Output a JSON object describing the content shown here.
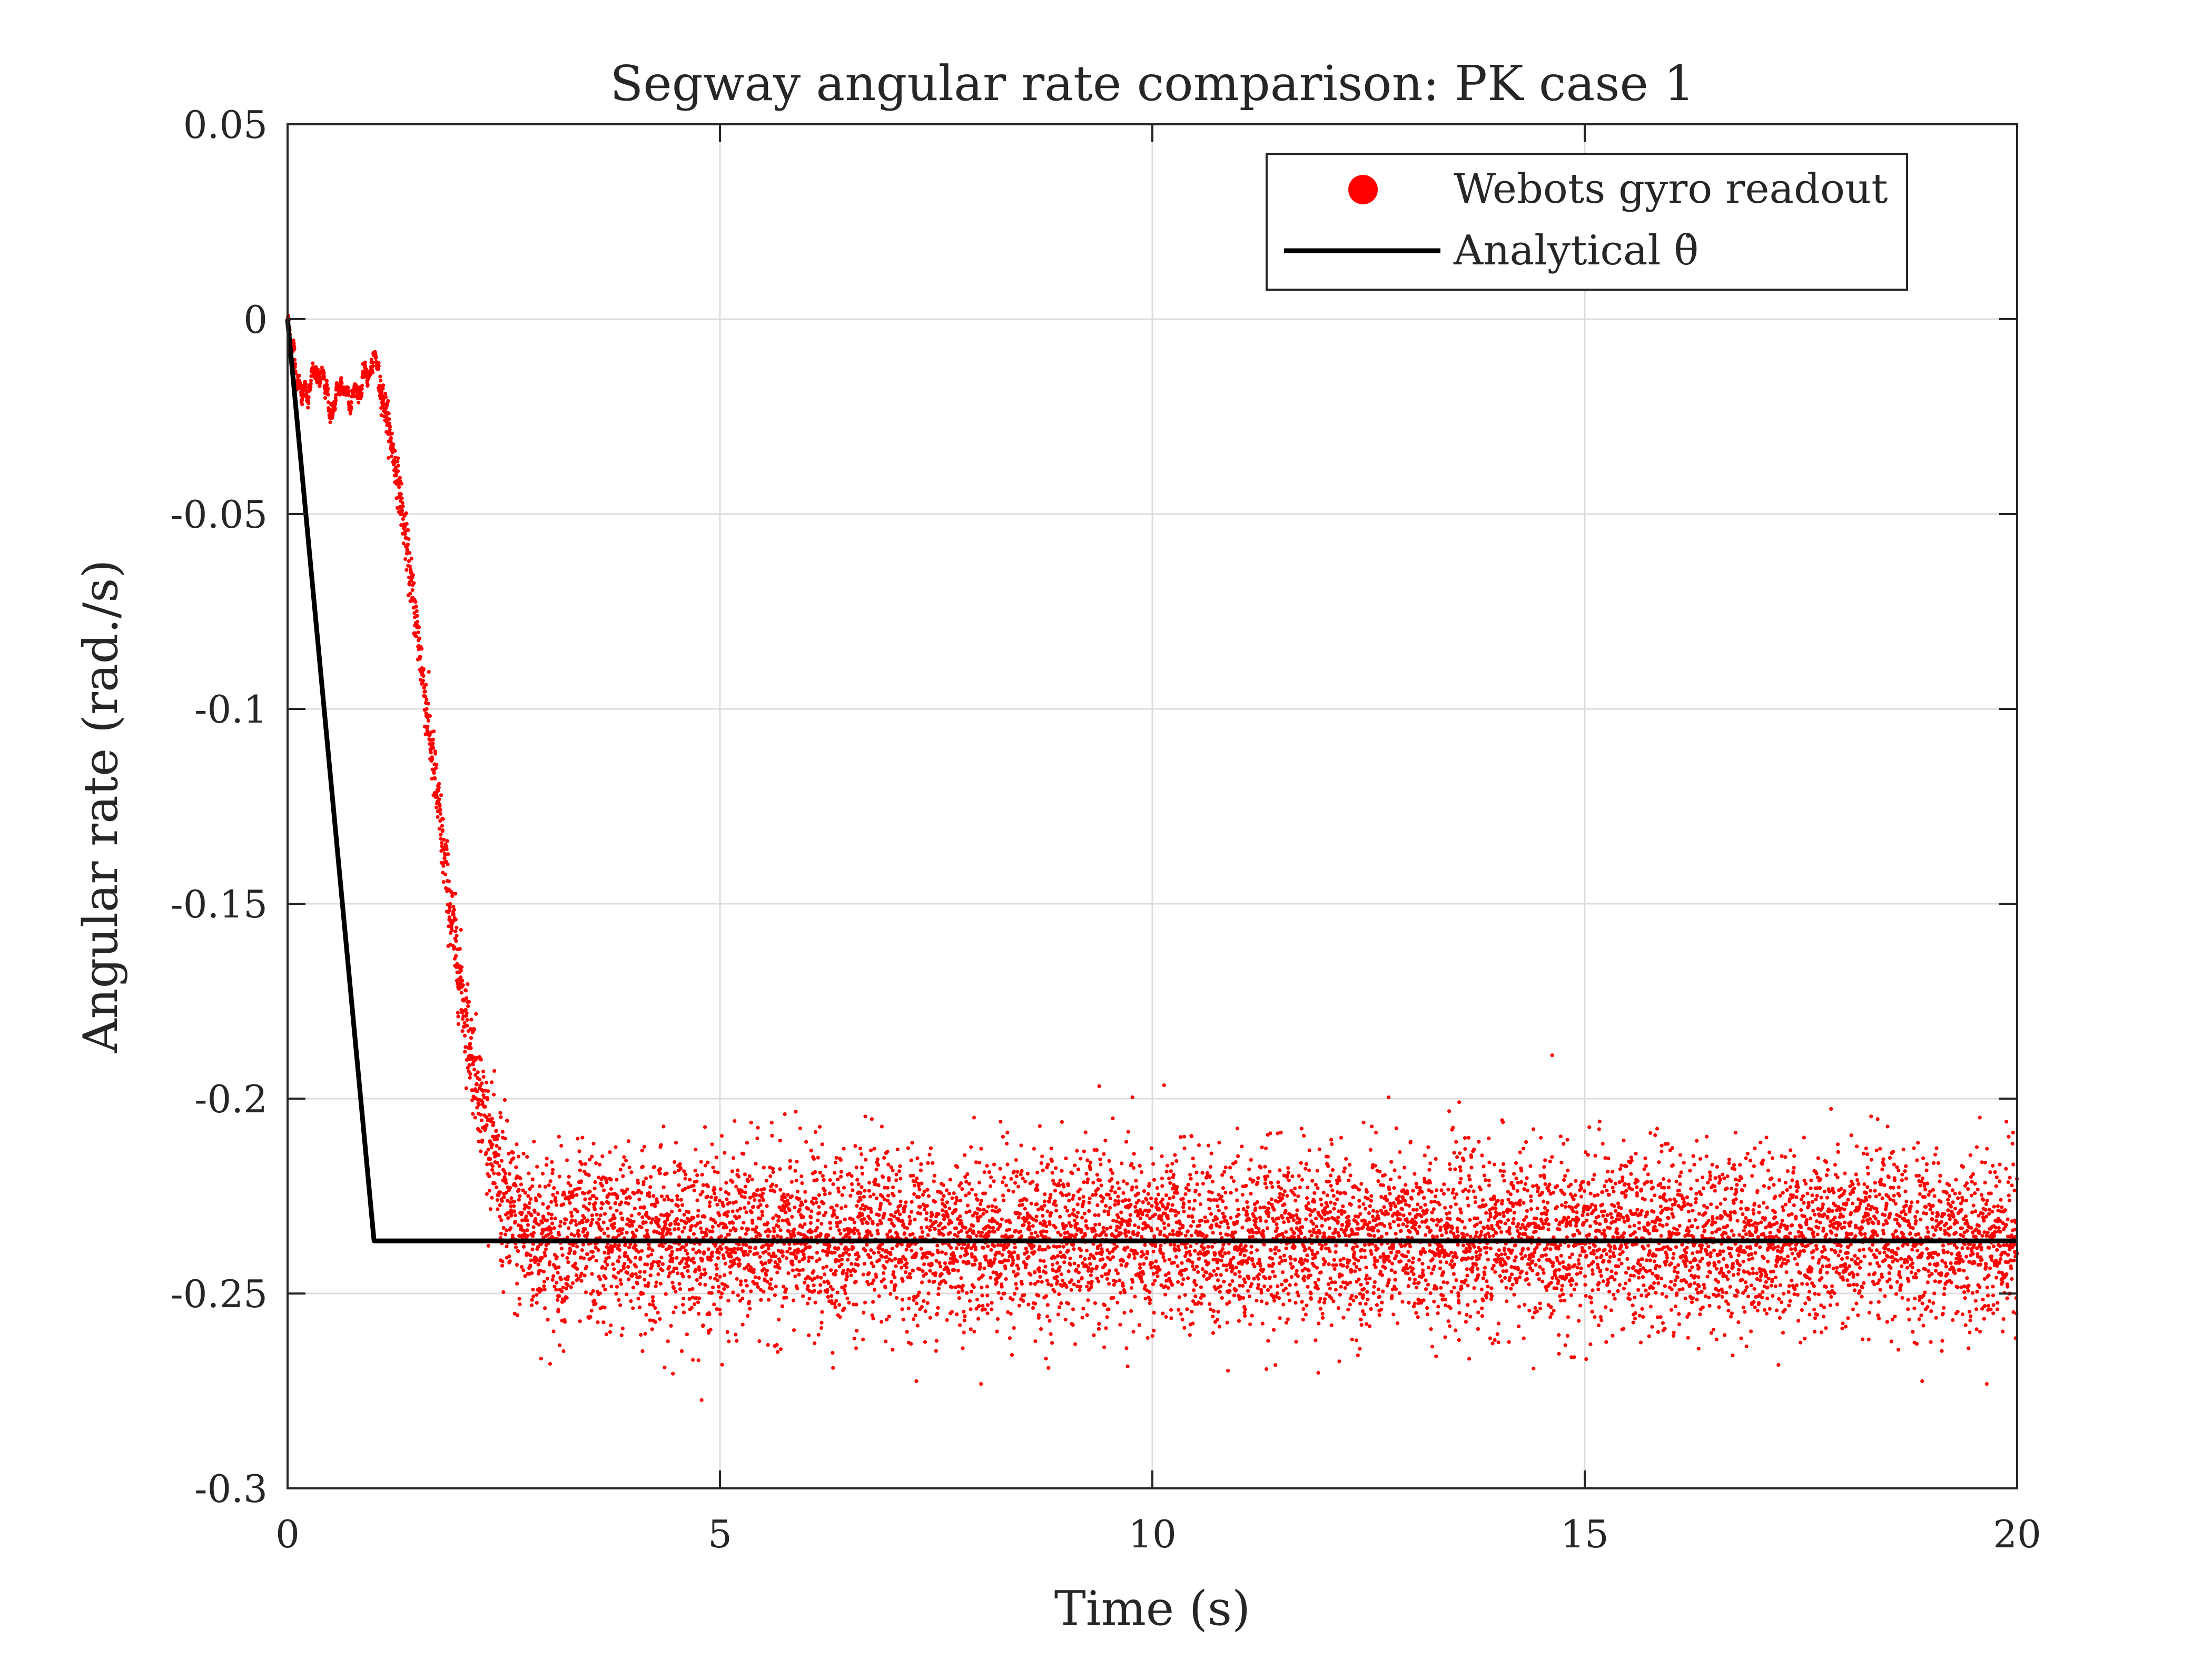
{
  "chart_data": {
    "type": "scatter",
    "title": "Segway angular rate comparison: PK case 1",
    "xlabel": "Time (s)",
    "ylabel": "Angular rate (rad./s)",
    "xlim": [
      0,
      20
    ],
    "ylim": [
      -0.3,
      0.05
    ],
    "grid": true,
    "legend_position": "top-right",
    "x_ticks": [
      0,
      5,
      10,
      15,
      20
    ],
    "x_tick_labels": [
      "0",
      "5",
      "10",
      "15",
      "20"
    ],
    "y_ticks": [
      0.05,
      0,
      -0.05,
      -0.1,
      -0.15,
      -0.2,
      -0.25,
      -0.3
    ],
    "y_tick_labels": [
      "0.05",
      "0",
      "-0.05",
      "-0.1",
      "-0.15",
      "-0.2",
      "-0.25",
      "-0.3"
    ],
    "series": [
      {
        "name": "Webots gyro readout",
        "kind": "scatter",
        "color": "#ff0000",
        "description_points": {
          "x": [
            0,
            0.05,
            0.1,
            0.15,
            0.2,
            0.3,
            0.4,
            0.5,
            0.6,
            0.7,
            0.8,
            0.9,
            1.0,
            1.05,
            1.15,
            1.3,
            1.5,
            1.7,
            1.9,
            2.1,
            2.3,
            2.45,
            2.6,
            3,
            4,
            5,
            6,
            7,
            8,
            9,
            10,
            11,
            12,
            13,
            14,
            15,
            16,
            17,
            18,
            19,
            20
          ],
          "y": [
            0,
            -0.005,
            -0.012,
            -0.016,
            -0.018,
            -0.016,
            -0.019,
            -0.024,
            -0.02,
            -0.017,
            -0.016,
            -0.015,
            -0.013,
            -0.015,
            -0.025,
            -0.045,
            -0.08,
            -0.117,
            -0.155,
            -0.185,
            -0.207,
            -0.222,
            -0.232,
            -0.236,
            -0.236,
            -0.236,
            -0.236,
            -0.236,
            -0.236,
            -0.236,
            -0.236,
            -0.236,
            -0.236,
            -0.236,
            -0.236,
            -0.236,
            -0.236,
            -0.236,
            -0.236,
            -0.236,
            -0.236
          ]
        },
        "noise_std_steady": 0.011
      },
      {
        "name": "Analytical θ̇",
        "kind": "line",
        "color": "#000000",
        "x": [
          0,
          1,
          20
        ],
        "y": [
          0,
          -0.2365,
          -0.2365
        ]
      }
    ]
  },
  "legend": {
    "items": [
      {
        "label": "Webots gyro readout",
        "color": "#ff0000",
        "marker": "dot"
      },
      {
        "label": "Analytical θ̇",
        "color": "#000000",
        "marker": "line"
      }
    ]
  }
}
